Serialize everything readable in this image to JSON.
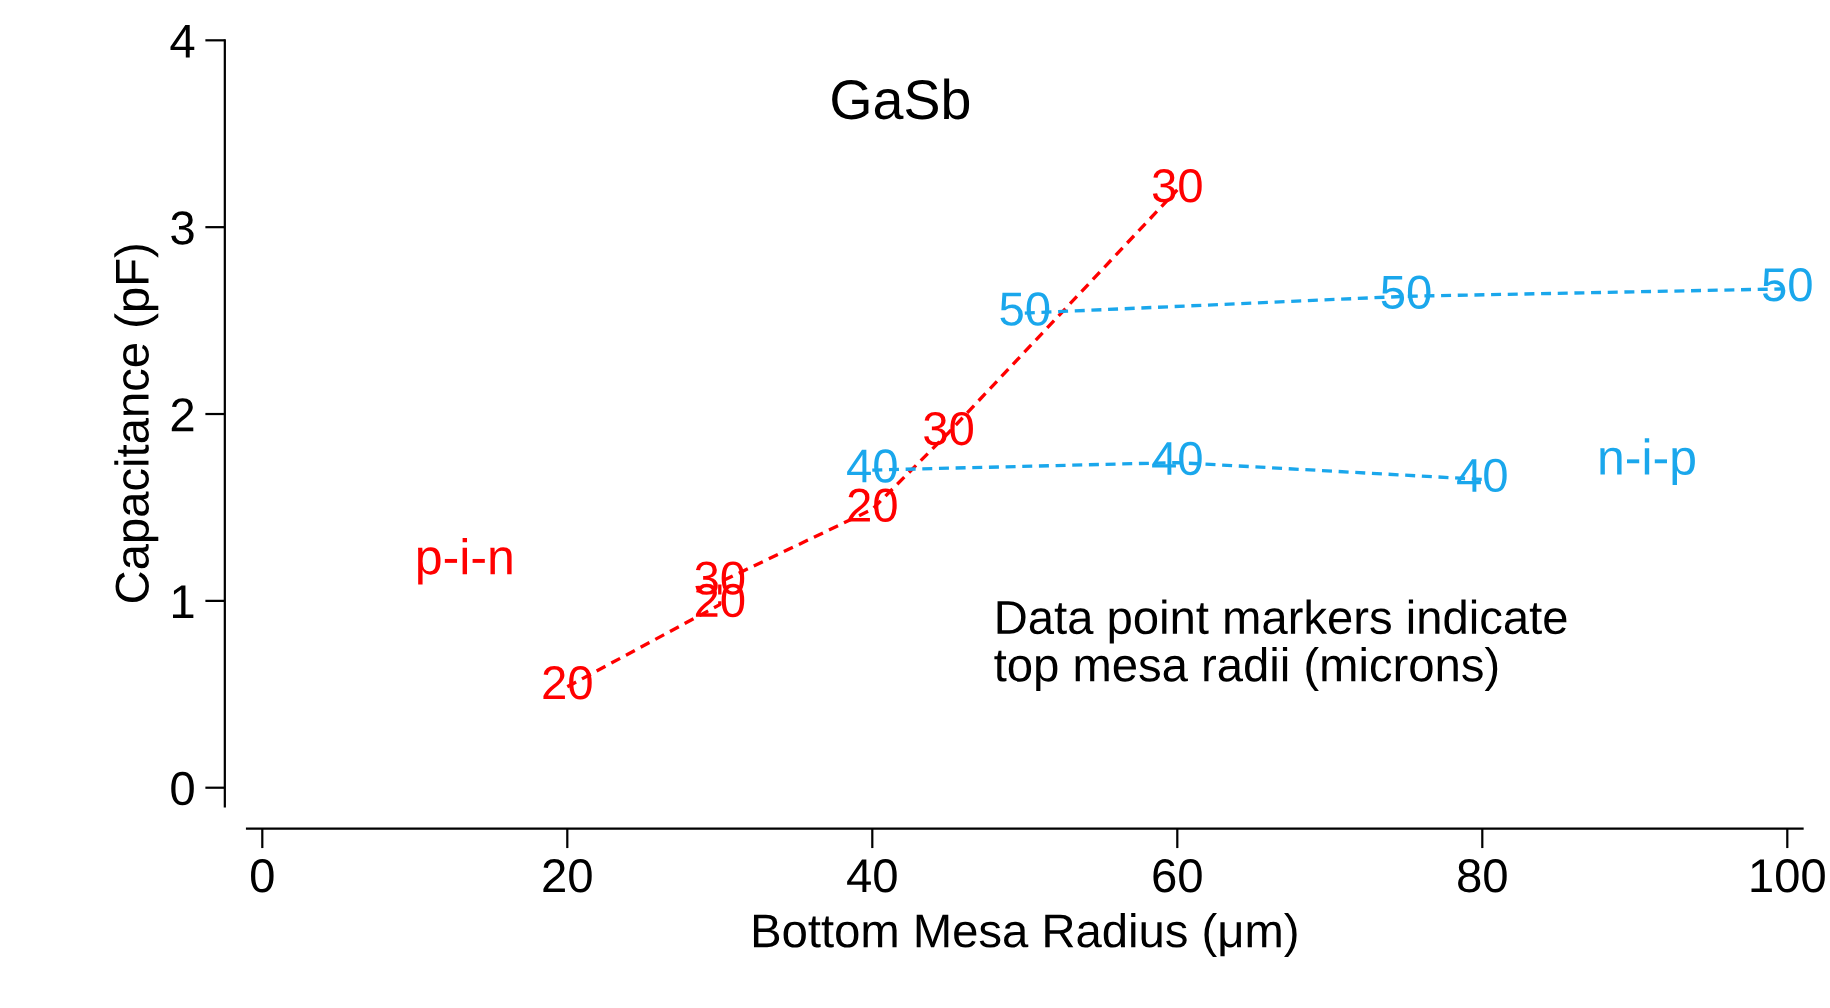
{
  "chart_data": {
    "type": "line",
    "title": "GaSb",
    "xlabel": "Bottom Mesa Radius (μm)",
    "ylabel": "Capacitance (pF)",
    "xlim": [
      -1,
      101
    ],
    "xticks": [
      0,
      20,
      40,
      60,
      80,
      100
    ],
    "ylim": [
      -0.1,
      4
    ],
    "yticks": [
      0,
      1,
      2,
      3,
      4
    ],
    "grid": false,
    "legend": false,
    "marker": "none",
    "line_style": "dashed",
    "series": [
      {
        "name": "p-i-n",
        "color": "#ff0000",
        "x": [
          20,
          30,
          30,
          40,
          45,
          60
        ],
        "values": [
          0.54,
          0.98,
          1.1,
          1.49,
          1.9,
          3.2
        ]
      },
      {
        "name": "n-i-p",
        "color": "#1aa7ec",
        "x": [
          40,
          60,
          80
        ],
        "values": [
          1.7,
          1.74,
          1.65
        ]
      },
      {
        "color": "#1aa7ec",
        "x": [
          50,
          75,
          100
        ],
        "values": [
          2.54,
          2.63,
          2.67
        ]
      }
    ],
    "annotations": [
      "Data point markers indicate\ntop mesa radii (microns)",
      {
        "text": "20",
        "x": 20,
        "y": 0.54
      },
      {
        "text": "20",
        "x": 30,
        "y": 0.98
      },
      {
        "text": "30",
        "x": 30,
        "y": 1.1
      },
      {
        "text": "20",
        "x": 40,
        "y": 1.49
      },
      {
        "text": "30",
        "x": 45,
        "y": 1.9
      },
      {
        "text": "30",
        "x": 60,
        "y": 3.2
      },
      {
        "text": "40",
        "x": 40,
        "y": 1.7
      },
      {
        "text": "40",
        "x": 60,
        "y": 1.74
      },
      {
        "text": "40",
        "x": 80,
        "y": 1.65
      },
      {
        "text": "50",
        "x": 50,
        "y": 2.54
      },
      {
        "text": "50",
        "x": 75,
        "y": 2.63
      },
      {
        "text": "50",
        "x": 100,
        "y": 2.67
      }
    ]
  }
}
